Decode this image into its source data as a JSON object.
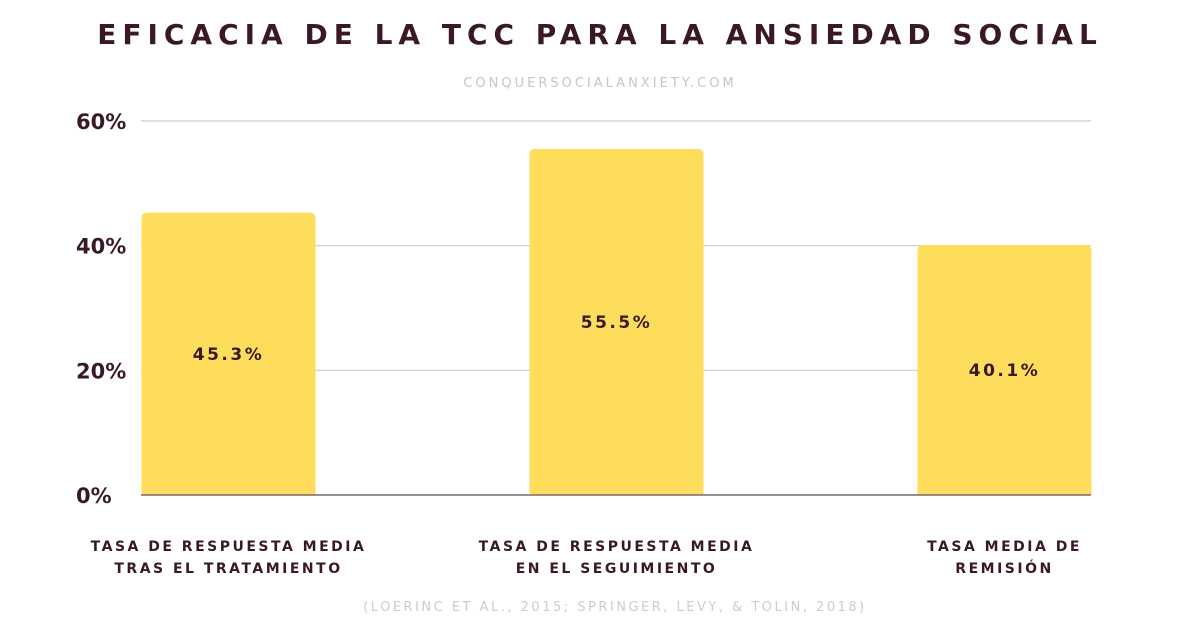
{
  "title": "EFICACIA DE LA TCC PARA LA ANSIEDAD SOCIAL",
  "subtitle": "CONQUERSOCIALANXIETY.COM",
  "footer": "(LOERINC ET AL., 2015; SPRINGER, LEVY, & TOLIN, 2018)",
  "colors": {
    "bar": "#ffdd5c",
    "text": "#3a1a22",
    "grid": "#cfcacb",
    "axis": "#7a6a6e"
  },
  "chart_data": {
    "type": "bar",
    "categories": [
      [
        "TASA DE RESPUESTA MEDIA",
        "TRAS EL TRATAMIENTO"
      ],
      [
        "TASA DE RESPUESTA MEDIA",
        "EN EL SEGUIMIENTO"
      ],
      [
        "TASA MEDIA DE",
        "REMISIÓN"
      ]
    ],
    "values": [
      45.3,
      55.5,
      40.1
    ],
    "value_labels": [
      "45.3%",
      "55.5%",
      "40.1%"
    ],
    "yticks": [
      0,
      20,
      40,
      60
    ],
    "ytick_labels": [
      "0%",
      "20%",
      "40%",
      "60%"
    ],
    "ylim": [
      0,
      60
    ],
    "grid": true,
    "legend": false
  }
}
